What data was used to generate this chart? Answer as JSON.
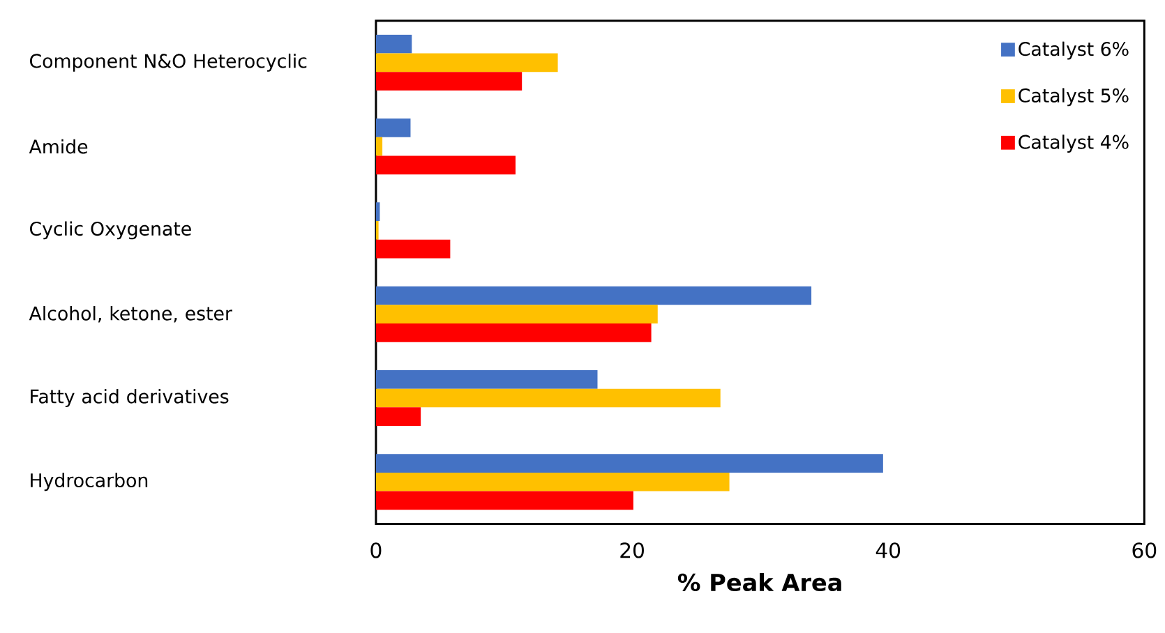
{
  "chart_data": {
    "type": "bar",
    "orientation": "horizontal",
    "xlabel": "% Peak Area",
    "categories": [
      "Component N&O Heterocyclic",
      "Amide",
      "Cyclic Oxygenate",
      "Alcohol, ketone, ester",
      "Fatty acid derivatives",
      "Hydrocarbon"
    ],
    "series": [
      {
        "name": "Catalyst 6%",
        "color": "#4472c4",
        "values": [
          2.8,
          2.7,
          0.3,
          34.0,
          17.3,
          39.6
        ]
      },
      {
        "name": "Catalyst 5%",
        "color": "#ffc000",
        "values": [
          14.2,
          0.5,
          0.2,
          22.0,
          26.9,
          27.6
        ]
      },
      {
        "name": "Catalyst 4%",
        "color": "#ff0000",
        "values": [
          11.4,
          10.9,
          5.8,
          21.5,
          3.5,
          20.1
        ]
      }
    ],
    "xlim": [
      0,
      60
    ],
    "xticks": [
      0,
      20,
      40,
      60
    ],
    "grid": false,
    "legend": "top right"
  }
}
